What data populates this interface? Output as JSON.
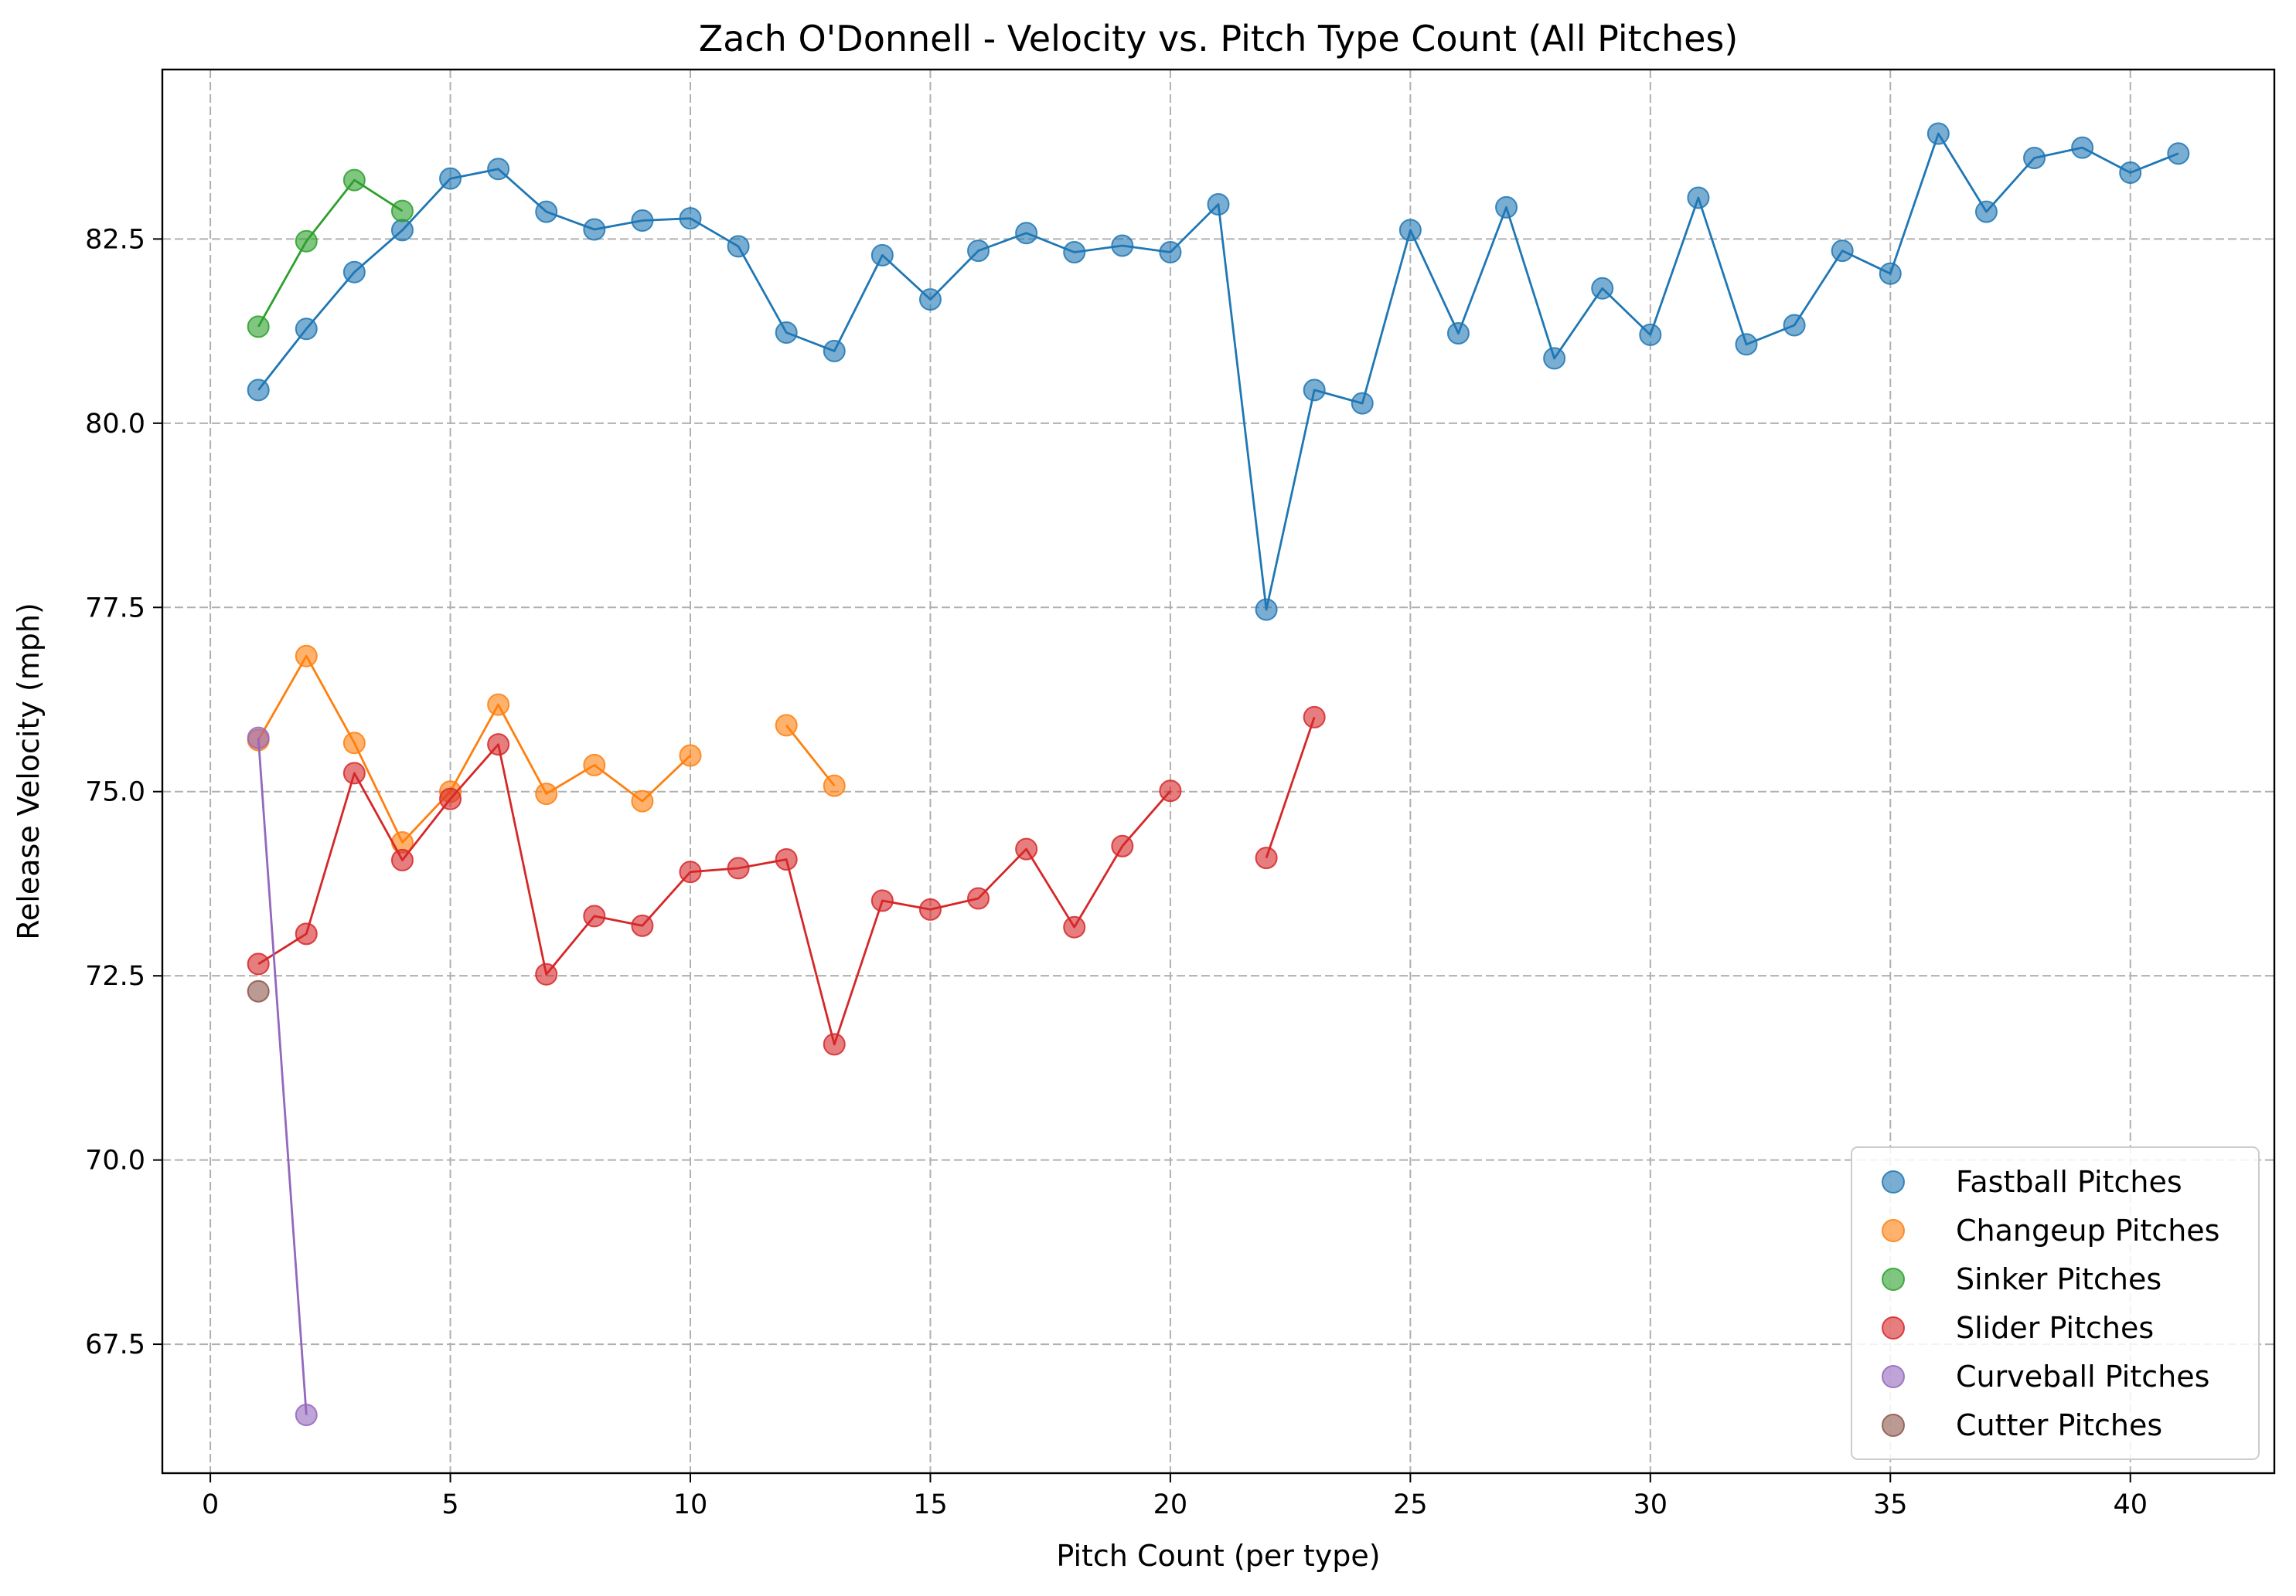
{
  "chart_data": {
    "type": "line",
    "title": "Zach O'Donnell - Velocity vs. Pitch Type Count (All Pitches)",
    "xlabel": "Pitch Count (per type)",
    "ylabel": "Release Velocity (mph)",
    "xlim": [
      -1.0,
      43.0
    ],
    "ylim": [
      65.75,
      84.8
    ],
    "xticks": [
      0,
      5,
      10,
      15,
      20,
      25,
      30,
      35,
      40
    ],
    "xtick_labels": [
      "0",
      "5",
      "10",
      "15",
      "20",
      "25",
      "30",
      "35",
      "40"
    ],
    "yticks": [
      67.5,
      70.0,
      72.5,
      75.0,
      77.5,
      80.0,
      82.5
    ],
    "ytick_labels": [
      "67.5",
      "70.0",
      "72.5",
      "75.0",
      "77.5",
      "80.0",
      "82.5"
    ],
    "grid": true,
    "legend_position": "lower right",
    "series": [
      {
        "name": "Fastball Pitches",
        "color": "#1f77b4",
        "points": [
          [
            1,
            80.45
          ],
          [
            2,
            81.28
          ],
          [
            3,
            82.05
          ],
          [
            4,
            82.62
          ],
          [
            5,
            83.32
          ],
          [
            6,
            83.45
          ],
          [
            7,
            82.87
          ],
          [
            8,
            82.63
          ],
          [
            9,
            82.75
          ],
          [
            10,
            82.78
          ],
          [
            11,
            82.4
          ],
          [
            12,
            81.23
          ],
          [
            13,
            80.98
          ],
          [
            14,
            82.28
          ],
          [
            15,
            81.68
          ],
          [
            16,
            82.34
          ],
          [
            17,
            82.58
          ],
          [
            18,
            82.32
          ],
          [
            19,
            82.41
          ],
          [
            20,
            82.32
          ],
          [
            21,
            82.97
          ],
          [
            22,
            77.47
          ],
          [
            23,
            80.45
          ],
          [
            24,
            80.27
          ],
          [
            25,
            82.62
          ],
          [
            26,
            81.22
          ],
          [
            27,
            82.93
          ],
          [
            28,
            80.88
          ],
          [
            29,
            81.83
          ],
          [
            30,
            81.2
          ],
          [
            31,
            83.06
          ],
          [
            32,
            81.07
          ],
          [
            33,
            81.33
          ],
          [
            34,
            82.34
          ],
          [
            35,
            82.03
          ],
          [
            36,
            83.93
          ],
          [
            37,
            82.87
          ],
          [
            38,
            83.6
          ],
          [
            39,
            83.74
          ],
          [
            40,
            83.4
          ],
          [
            41,
            83.66
          ]
        ]
      },
      {
        "name": "Changeup Pitches",
        "color": "#ff7f0e",
        "points": [
          [
            1,
            75.7
          ],
          [
            2,
            76.84
          ],
          [
            3,
            75.66
          ],
          [
            4,
            74.31
          ],
          [
            5,
            75.0
          ],
          [
            6,
            76.18
          ],
          [
            7,
            74.97
          ],
          [
            8,
            75.36
          ],
          [
            9,
            74.87
          ],
          [
            10,
            75.49
          ],
          [
            12,
            75.9
          ],
          [
            13,
            75.08
          ]
        ]
      },
      {
        "name": "Sinker Pitches",
        "color": "#2ca02c",
        "points": [
          [
            1,
            81.31
          ],
          [
            2,
            82.47
          ],
          [
            3,
            83.3
          ],
          [
            4,
            82.88
          ]
        ]
      },
      {
        "name": "Slider Pitches",
        "color": "#d62728",
        "points": [
          [
            1,
            72.66
          ],
          [
            2,
            73.07
          ],
          [
            3,
            75.25
          ],
          [
            4,
            74.07
          ],
          [
            5,
            74.9
          ],
          [
            6,
            75.64
          ],
          [
            7,
            72.52
          ],
          [
            8,
            73.31
          ],
          [
            9,
            73.18
          ],
          [
            10,
            73.91
          ],
          [
            11,
            73.96
          ],
          [
            12,
            74.08
          ],
          [
            13,
            71.57
          ],
          [
            14,
            73.52
          ],
          [
            15,
            73.4
          ],
          [
            16,
            73.55
          ],
          [
            17,
            74.22
          ],
          [
            18,
            73.16
          ],
          [
            19,
            74.26
          ],
          [
            20,
            75.01
          ],
          [
            22,
            74.1
          ],
          [
            23,
            76.01
          ]
        ]
      },
      {
        "name": "Curveball Pitches",
        "color": "#9467bd",
        "points": [
          [
            1,
            75.73
          ],
          [
            2,
            66.54
          ]
        ]
      },
      {
        "name": "Cutter Pitches",
        "color": "#8c564b",
        "points": [
          [
            1,
            72.29
          ]
        ]
      }
    ]
  }
}
